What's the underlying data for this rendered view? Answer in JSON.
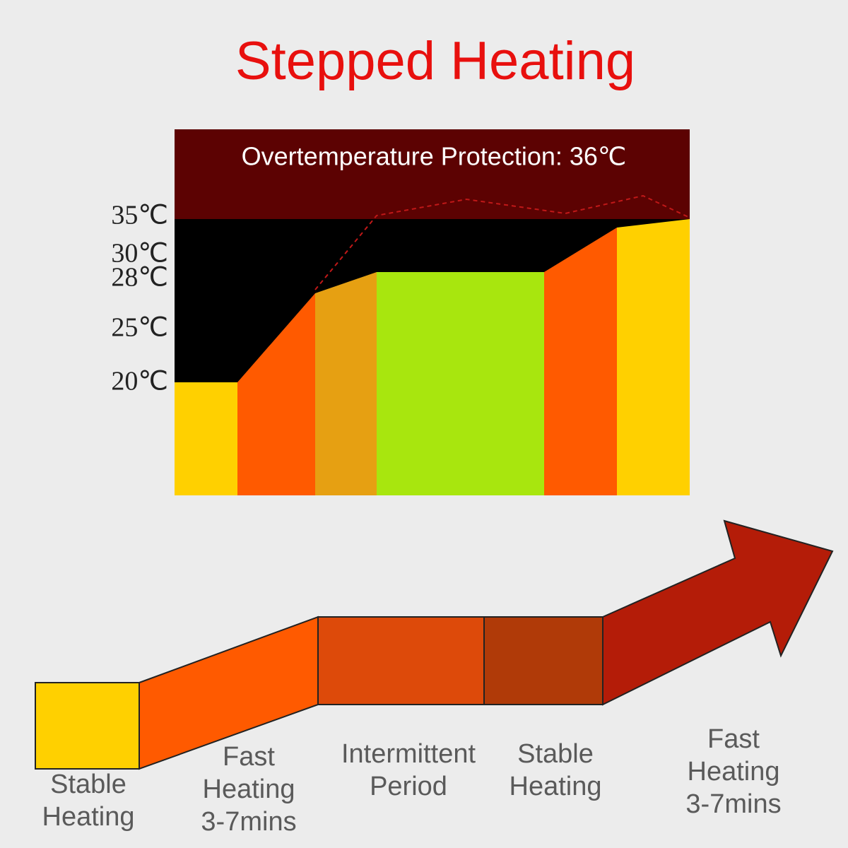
{
  "header": {
    "title": "Stepped Heating"
  },
  "chart": {
    "banner": "Overtemperature Protection: 36℃",
    "temperature_labels": [
      "35℃",
      "30℃",
      "28℃",
      "25℃",
      "20℃"
    ]
  },
  "stages": [
    {
      "lines": [
        "Stable",
        "Heating"
      ]
    },
    {
      "lines": [
        "Fast",
        "Heating",
        "3-7mins"
      ]
    },
    {
      "lines": [
        "Intermittent",
        "Period"
      ]
    },
    {
      "lines": [
        "Stable",
        "Heating"
      ]
    },
    {
      "lines": [
        "Fast",
        "Heating",
        "3-7mins"
      ]
    }
  ]
}
